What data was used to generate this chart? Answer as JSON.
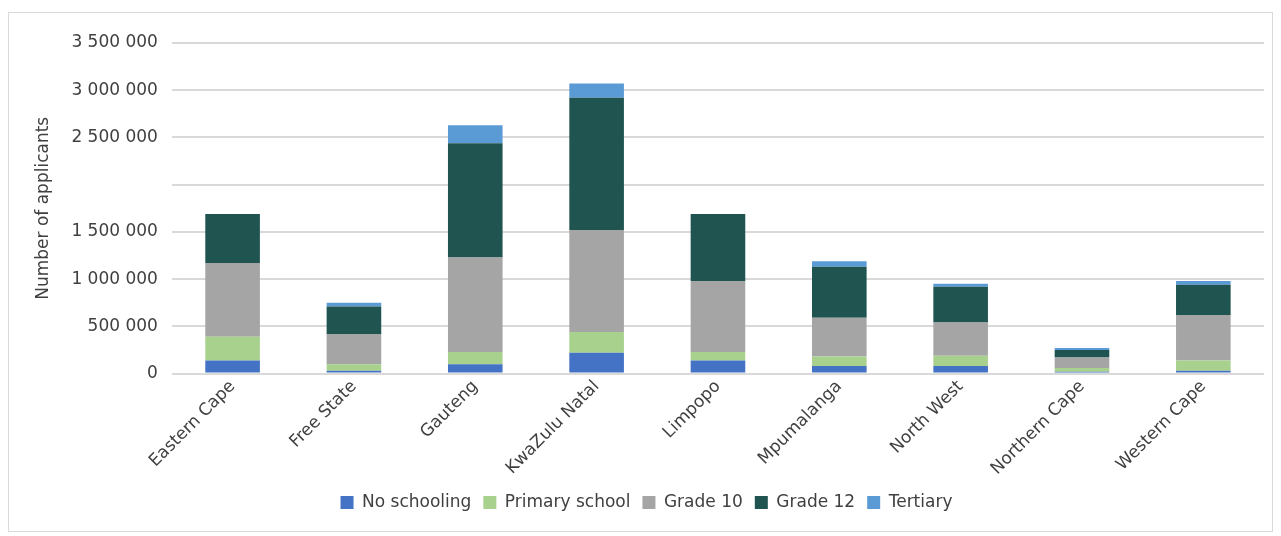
{
  "chart_data": {
    "type": "bar",
    "stacked": true,
    "ylabel": "Number of applicants",
    "categories": [
      "Eastern Cape",
      "Free State",
      "Gauteng",
      "KwaZulu Natal",
      "Limpopo",
      "Mpumalanga",
      "North West",
      "Northern Cape",
      "Western Cape"
    ],
    "series": [
      {
        "name": "No schooling",
        "color": "#4472c4",
        "values": [
          140000,
          30000,
          100000,
          220000,
          140000,
          80000,
          80000,
          20000,
          30000
        ]
      },
      {
        "name": "Primary school",
        "color": "#a9d18e",
        "values": [
          250000,
          70000,
          130000,
          220000,
          90000,
          100000,
          110000,
          40000,
          110000
        ]
      },
      {
        "name": "Grade 10",
        "color": "#a5a5a5",
        "values": [
          780000,
          320000,
          1000000,
          1080000,
          750000,
          410000,
          350000,
          110000,
          480000
        ]
      },
      {
        "name": "Grade 12",
        "color": "#1f5451",
        "values": [
          520000,
          290000,
          1210000,
          1400000,
          710000,
          540000,
          380000,
          80000,
          320000
        ]
      },
      {
        "name": "Tertiary",
        "color": "#5b9bd5",
        "values": [
          0,
          40000,
          190000,
          150000,
          0,
          60000,
          30000,
          20000,
          40000
        ]
      }
    ],
    "ylim": [
      0,
      3500000
    ],
    "yticks": [
      0,
      {
        "value": 500000,
        "label": "500 000"
      },
      {
        "value": 1000000,
        "label": "1 000 000"
      },
      {
        "value": 1500000,
        "label": "1 500 000"
      },
      {
        "value": 2000000,
        "label": null
      },
      {
        "value": 2500000,
        "label": "2 500 000"
      },
      {
        "value": 3000000,
        "label": "3 000 000"
      },
      {
        "value": 3500000,
        "label": "3 500 000"
      }
    ],
    "grid": "y",
    "legend": "bottom"
  }
}
